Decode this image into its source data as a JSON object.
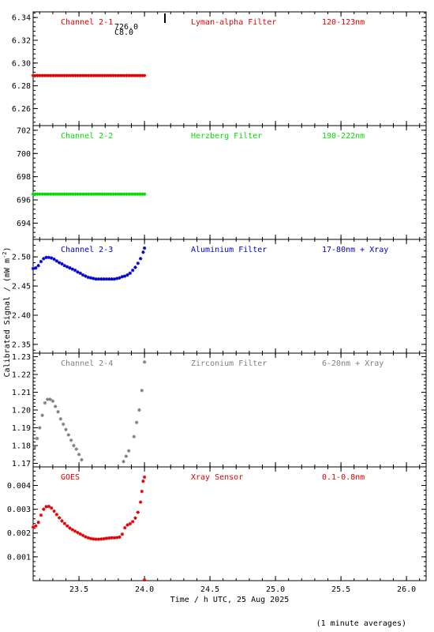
{
  "chart_data": {
    "type": "scatter",
    "ylabel_main": "Calibrated Signal / (mW m",
    "ylabel_sup": "-2",
    "ylabel_end": ")",
    "xlabel": "Time / h UTC, 25 Aug 2025",
    "footnote": "(1 minute averages)",
    "xlim": [
      23.15,
      26.15
    ],
    "xticks": [
      "23.5",
      "24.0",
      "24.5",
      "25.0",
      "25.5",
      "26.0"
    ],
    "xtick_values": [
      23.5,
      24.0,
      24.5,
      25.0,
      25.5,
      26.0
    ],
    "panels": [
      {
        "channel": "Channel 2-1",
        "filter": "Lyman-alpha Filter",
        "band": "120-123nm",
        "color": "#e00000",
        "ylim": [
          6.245,
          6.345
        ],
        "yticks": [
          "6.26",
          "6.28",
          "6.30",
          "6.32",
          "6.34"
        ],
        "ytick_values": [
          6.26,
          6.28,
          6.3,
          6.32,
          6.34
        ],
        "annotation_1": "726.0",
        "annotation_2": "C8.0",
        "series": {
          "x_start": 23.15,
          "x_end": 24.0,
          "y_start": 6.289,
          "y_end": 6.289,
          "n": 51
        }
      },
      {
        "channel": "Channel 2-2",
        "filter": "Herzberg Filter",
        "band": "190-222nm",
        "color": "#00dd00",
        "ylim": [
          692.6,
          702.4
        ],
        "yticks": [
          "694",
          "696",
          "698",
          "700",
          "702"
        ],
        "ytick_values": [
          694,
          696,
          698,
          700,
          702
        ],
        "series": {
          "x_start": 23.15,
          "x_end": 24.0,
          "y_start": 696.5,
          "y_end": 696.5,
          "n": 51
        }
      },
      {
        "channel": "Channel 2-3",
        "filter": "Aluminium Filter",
        "band": "17-80nm + Xray",
        "color": "#0000cc",
        "ylim": [
          2.335,
          2.53
        ],
        "yticks": [
          "2.35",
          "2.40",
          "2.45",
          "2.50"
        ],
        "ytick_values": [
          2.35,
          2.4,
          2.45,
          2.5
        ],
        "points": [
          [
            23.15,
            2.48
          ],
          [
            23.17,
            2.481
          ],
          [
            23.19,
            2.485
          ],
          [
            23.21,
            2.492
          ],
          [
            23.23,
            2.497
          ],
          [
            23.25,
            2.499
          ],
          [
            23.27,
            2.499
          ],
          [
            23.29,
            2.498
          ],
          [
            23.31,
            2.496
          ],
          [
            23.33,
            2.493
          ],
          [
            23.35,
            2.49
          ],
          [
            23.37,
            2.488
          ],
          [
            23.39,
            2.485
          ],
          [
            23.41,
            2.483
          ],
          [
            23.43,
            2.481
          ],
          [
            23.45,
            2.479
          ],
          [
            23.47,
            2.477
          ],
          [
            23.49,
            2.474
          ],
          [
            23.51,
            2.472
          ],
          [
            23.53,
            2.469
          ],
          [
            23.55,
            2.467
          ],
          [
            23.57,
            2.465
          ],
          [
            23.59,
            2.464
          ],
          [
            23.61,
            2.463
          ],
          [
            23.63,
            2.462
          ],
          [
            23.65,
            2.462
          ],
          [
            23.67,
            2.462
          ],
          [
            23.69,
            2.462
          ],
          [
            23.71,
            2.462
          ],
          [
            23.73,
            2.462
          ],
          [
            23.75,
            2.462
          ],
          [
            23.77,
            2.462
          ],
          [
            23.79,
            2.463
          ],
          [
            23.81,
            2.464
          ],
          [
            23.83,
            2.466
          ],
          [
            23.85,
            2.467
          ],
          [
            23.87,
            2.469
          ],
          [
            23.89,
            2.472
          ],
          [
            23.91,
            2.477
          ],
          [
            23.93,
            2.482
          ],
          [
            23.95,
            2.489
          ],
          [
            23.97,
            2.497
          ],
          [
            23.99,
            2.508
          ],
          [
            24.0,
            2.515
          ]
        ]
      },
      {
        "channel": "Channel 2-4",
        "filter": "Zirconium Filter",
        "band": "6-20nm + Xray",
        "color": "#808080",
        "ylim": [
          1.168,
          1.232
        ],
        "yticks": [
          "1.17",
          "1.18",
          "1.19",
          "1.20",
          "1.21",
          "1.22",
          "1.23"
        ],
        "ytick_values": [
          1.17,
          1.18,
          1.19,
          1.2,
          1.21,
          1.22,
          1.23
        ],
        "points": [
          [
            23.16,
            1.179
          ],
          [
            23.18,
            1.184
          ],
          [
            23.2,
            1.19
          ],
          [
            23.22,
            1.197
          ],
          [
            23.24,
            1.204
          ],
          [
            23.26,
            1.206
          ],
          [
            23.28,
            1.206
          ],
          [
            23.3,
            1.205
          ],
          [
            23.32,
            1.202
          ],
          [
            23.34,
            1.199
          ],
          [
            23.36,
            1.195
          ],
          [
            23.38,
            1.192
          ],
          [
            23.4,
            1.189
          ],
          [
            23.42,
            1.186
          ],
          [
            23.44,
            1.183
          ],
          [
            23.46,
            1.18
          ],
          [
            23.48,
            1.178
          ],
          [
            23.5,
            1.175
          ],
          [
            23.52,
            1.172
          ],
          [
            23.84,
            1.171
          ],
          [
            23.86,
            1.174
          ],
          [
            23.88,
            1.177
          ],
          [
            23.92,
            1.185
          ],
          [
            23.94,
            1.193
          ],
          [
            23.96,
            1.2
          ],
          [
            23.98,
            1.211
          ],
          [
            24.0,
            1.227
          ]
        ]
      },
      {
        "channel": "GOES",
        "filter": "Xray Sensor",
        "band": "0.1-0.8nm",
        "color": "#e00000",
        "ylim": [
          0.0,
          0.00478
        ],
        "yticks": [
          "0.001",
          "0.002",
          "0.003",
          "0.004"
        ],
        "ytick_values": [
          0.001,
          0.002,
          0.003,
          0.004
        ],
        "points": [
          [
            23.15,
            0.00225
          ],
          [
            23.17,
            0.0023
          ],
          [
            23.19,
            0.00245
          ],
          [
            23.21,
            0.00275
          ],
          [
            23.23,
            0.003
          ],
          [
            23.25,
            0.00311
          ],
          [
            23.27,
            0.00312
          ],
          [
            23.29,
            0.00305
          ],
          [
            23.31,
            0.00292
          ],
          [
            23.33,
            0.00278
          ],
          [
            23.35,
            0.00264
          ],
          [
            23.37,
            0.00251
          ],
          [
            23.39,
            0.0024
          ],
          [
            23.41,
            0.0023
          ],
          [
            23.43,
            0.00221
          ],
          [
            23.45,
            0.00214
          ],
          [
            23.47,
            0.00208
          ],
          [
            23.49,
            0.00202
          ],
          [
            23.51,
            0.00196
          ],
          [
            23.53,
            0.0019
          ],
          [
            23.55,
            0.00184
          ],
          [
            23.57,
            0.0018
          ],
          [
            23.59,
            0.00177
          ],
          [
            23.61,
            0.00175
          ],
          [
            23.63,
            0.00174
          ],
          [
            23.65,
            0.00174
          ],
          [
            23.67,
            0.00175
          ],
          [
            23.69,
            0.00176
          ],
          [
            23.71,
            0.00178
          ],
          [
            23.73,
            0.00179
          ],
          [
            23.75,
            0.0018
          ],
          [
            23.77,
            0.0018
          ],
          [
            23.79,
            0.00181
          ],
          [
            23.81,
            0.00183
          ],
          [
            23.83,
            0.00195
          ],
          [
            23.85,
            0.00222
          ],
          [
            23.87,
            0.00234
          ],
          [
            23.89,
            0.00239
          ],
          [
            23.91,
            0.00248
          ],
          [
            23.93,
            0.00263
          ],
          [
            23.95,
            0.00287
          ],
          [
            23.97,
            0.0033
          ],
          [
            23.98,
            0.00375
          ],
          [
            23.99,
            0.00418
          ],
          [
            24.0,
            0.00435
          ],
          [
            24.0,
            3e-05
          ]
        ]
      }
    ]
  }
}
